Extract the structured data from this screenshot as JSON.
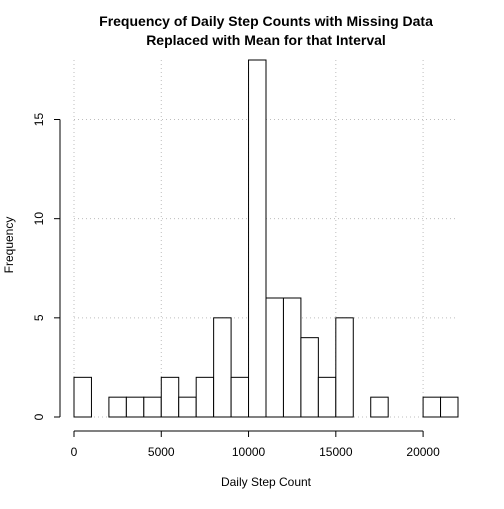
{
  "chart_data": {
    "type": "bar",
    "title": "Frequency of Daily Step Counts with Missing Data\nReplaced with Mean for that Interval",
    "xlabel": "Daily Step Count",
    "ylabel": "Frequency",
    "bin_width": 1000,
    "bins_start": [
      0,
      1000,
      2000,
      3000,
      4000,
      5000,
      6000,
      7000,
      8000,
      9000,
      10000,
      11000,
      12000,
      13000,
      14000,
      15000,
      16000,
      17000,
      18000,
      19000,
      20000,
      21000
    ],
    "values": [
      2,
      0,
      1,
      1,
      1,
      2,
      1,
      2,
      5,
      2,
      18,
      6,
      6,
      4,
      2,
      5,
      0,
      1,
      0,
      0,
      1,
      1
    ],
    "xlim": [
      0,
      22000
    ],
    "ylim": [
      0,
      18
    ],
    "x_ticks": [
      0,
      5000,
      10000,
      15000,
      20000
    ],
    "y_ticks": [
      0,
      5,
      10,
      15
    ],
    "grid": true,
    "colors": {
      "bar_fill": "#ffffff",
      "bar_stroke": "#000000",
      "grid": "#bdbdbd"
    }
  }
}
